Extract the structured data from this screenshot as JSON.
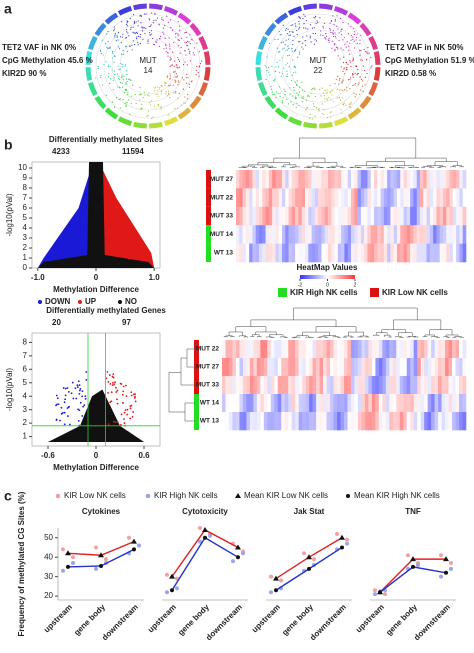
{
  "panel_labels": [
    "a",
    "b",
    "c"
  ],
  "circos": [
    {
      "center": [
        "MUT",
        "14"
      ],
      "notes": [
        "TET2 VAF in NK 0%",
        "CpG Methylation 45.6 %",
        "KIR2D 90 %"
      ]
    },
    {
      "center": [
        "MUT",
        "22"
      ],
      "notes": [
        "TET2 VAF in NK 50%",
        "CpG Methylation 51.9 %",
        "KIR2D 0.58 %"
      ]
    }
  ],
  "volcanoes": [
    {
      "title": "Differentially methylated Sites",
      "down_count": 4233,
      "up_count": 11594,
      "ylabel": "-log10(pVal)",
      "xlabel": "Methylation Difference",
      "xlim": [
        -1.1,
        1.1
      ],
      "xticks": [
        {
          "value": -1,
          "label": "-1.0"
        },
        0,
        {
          "value": 1,
          "label": "1.0"
        }
      ],
      "ylim": [
        0,
        10.6
      ],
      "yticks": [
        0,
        1,
        2,
        3,
        4,
        5,
        6,
        7,
        8,
        9,
        10
      ],
      "legend": [
        {
          "label": "DOWN",
          "color": "#1a1ad6"
        },
        {
          "label": "UP",
          "color": "#e01818"
        },
        {
          "label": "NO",
          "color": "#111111"
        }
      ]
    },
    {
      "title": "Differentially methylated Genes",
      "down_count": 20,
      "up_count": 97,
      "ylabel": "-log10(pVal)",
      "xlabel": "Methylation Difference",
      "xlim": [
        -0.8,
        0.8
      ],
      "xticks": [
        -0.6,
        0,
        0.6
      ],
      "ylim": [
        0.3,
        8.7
      ],
      "yticks": [
        1,
        2,
        3,
        4,
        5,
        6,
        7,
        8
      ]
    }
  ],
  "heatmaps": [
    {
      "rows": [
        "MUT 27",
        "MUT 22",
        "MUT 33",
        "MUT 14",
        "WT 13"
      ]
    },
    {
      "rows": [
        "MUT 22",
        "MUT 27",
        "MUT 33",
        "WT 14",
        "WT 13"
      ]
    }
  ],
  "heatmap_legend": {
    "title": "HeatMap Values",
    "ticks": [
      -2,
      0,
      2
    ]
  },
  "group_legend": [
    {
      "label": "KIR High NK cells",
      "color": "#22dd22"
    },
    {
      "label": "KIR Low NK cells",
      "color": "#dd1111"
    }
  ],
  "panel_c": {
    "ylabel": "Frequency of methylated CG Sites (%)",
    "legend": [
      {
        "label": "KIR Low NK cells",
        "color": "#f4a0a0",
        "marker": "circle"
      },
      {
        "label": "KIR High NK cells",
        "color": "#9aa4ee",
        "marker": "circle"
      },
      {
        "label": "Mean KIR Low NK cells",
        "color": "#111111",
        "marker": "triangle"
      },
      {
        "label": "Mean KIR High NK cells",
        "color": "#111111",
        "marker": "dot"
      }
    ]
  },
  "chart_data": [
    {
      "type": "line",
      "title": "Cytokines",
      "categories": [
        "upstream",
        "gene body",
        "downstream"
      ],
      "ylim": [
        18,
        55
      ],
      "yticks": [
        20,
        30,
        40,
        50
      ],
      "series": [
        {
          "color": "#e02020",
          "values": [
            42,
            41,
            48
          ]
        },
        {
          "color": "#2233cc",
          "values": [
            35,
            35.5,
            44
          ]
        }
      ],
      "samples": [
        {
          "color": "#f4a0a0",
          "values": [
            [
              44,
              40
            ],
            [
              45,
              39
            ],
            [
              50,
              46
            ]
          ]
        },
        {
          "color": "#9aa4ee",
          "values": [
            [
              33,
              37
            ],
            [
              34,
              37
            ],
            [
              42,
              46
            ]
          ]
        }
      ]
    },
    {
      "type": "line",
      "title": "Cytotoxicity",
      "categories": [
        "upstream",
        "gene body",
        "downstream"
      ],
      "ylim": [
        18,
        55
      ],
      "series": [
        {
          "color": "#e02020",
          "values": [
            30,
            54,
            45
          ]
        },
        {
          "color": "#2233cc",
          "values": [
            23,
            50,
            40
          ]
        }
      ],
      "samples": [
        {
          "color": "#f4a0a0",
          "values": [
            [
              31,
              29
            ],
            [
              55,
              52
            ],
            [
              47,
              43
            ]
          ]
        },
        {
          "color": "#9aa4ee",
          "values": [
            [
              22,
              24
            ],
            [
              48,
              51
            ],
            [
              38,
              42
            ]
          ]
        }
      ]
    },
    {
      "type": "line",
      "title": "Jak Stat",
      "categories": [
        "upstream",
        "gene body",
        "downstream"
      ],
      "ylim": [
        18,
        55
      ],
      "series": [
        {
          "color": "#e02020",
          "values": [
            29,
            40,
            50
          ]
        },
        {
          "color": "#2233cc",
          "values": [
            23,
            34,
            45
          ]
        }
      ],
      "samples": [
        {
          "color": "#f4a0a0",
          "values": [
            [
              30,
              28
            ],
            [
              42,
              39
            ],
            [
              52,
              49
            ]
          ]
        },
        {
          "color": "#9aa4ee",
          "values": [
            [
              22,
              24
            ],
            [
              33,
              36
            ],
            [
              44,
              47
            ]
          ]
        }
      ]
    },
    {
      "type": "line",
      "title": "TNF",
      "categories": [
        "upstream",
        "gene body",
        "downstream"
      ],
      "ylim": [
        18,
        55
      ],
      "series": [
        {
          "color": "#e02020",
          "values": [
            22,
            39,
            39
          ]
        },
        {
          "color": "#2233cc",
          "values": [
            22,
            35,
            32
          ]
        }
      ],
      "samples": [
        {
          "color": "#f4a0a0",
          "values": [
            [
              23,
              21
            ],
            [
              41,
              37
            ],
            [
              41,
              37
            ]
          ]
        },
        {
          "color": "#9aa4ee",
          "values": [
            [
              21,
              23
            ],
            [
              34,
              36
            ],
            [
              30,
              34
            ]
          ]
        }
      ]
    }
  ]
}
